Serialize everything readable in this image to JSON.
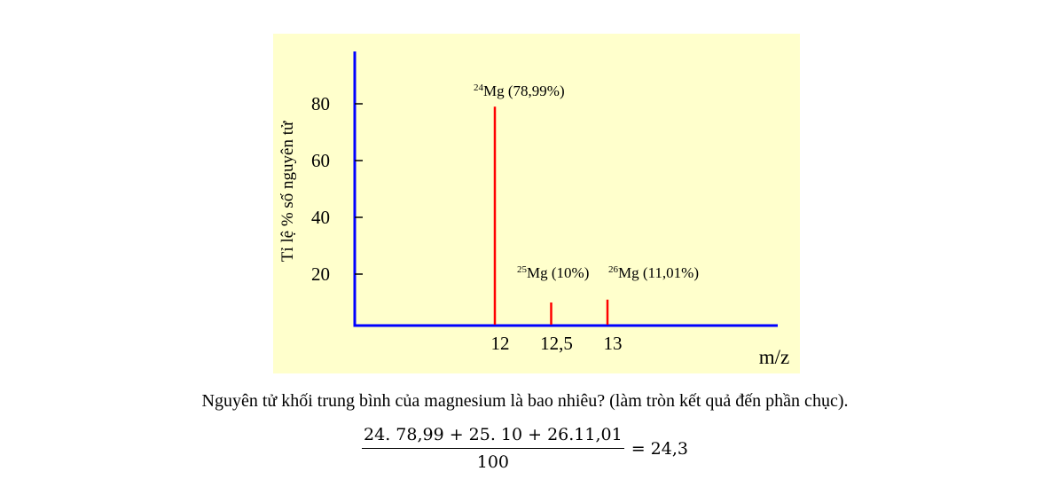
{
  "chart_data": {
    "type": "bar",
    "ylabel": "Tỉ lệ % số nguyên tử",
    "xlabel": "m/z",
    "x_ticks": [
      "12",
      "12,5",
      "13"
    ],
    "y_ticks": [
      20,
      40,
      60,
      80
    ],
    "ylim": [
      0,
      100
    ],
    "grid": false,
    "axis_color": "#0000ff",
    "bar_color": "#ff0000",
    "background_color": "#ffffcc",
    "peaks": [
      {
        "x": 12,
        "value": 78.99,
        "mass": "24",
        "element": "Mg",
        "percent": " (78,99%)"
      },
      {
        "x": 12.5,
        "value": 10,
        "mass": "25",
        "element": "Mg",
        "percent": " (10%)"
      },
      {
        "x": 13,
        "value": 11.01,
        "mass": "26",
        "element": "Mg",
        "percent": " (11,01%)"
      }
    ]
  },
  "question": "Nguyên tử khối trung bình của magnesium là bao nhiêu? (làm tròn kết quả đến phần chục).",
  "formula": {
    "numerator": "24. 78,99 + 25. 10 + 26.11,01",
    "denominator": "100",
    "result": "= 24,3"
  }
}
